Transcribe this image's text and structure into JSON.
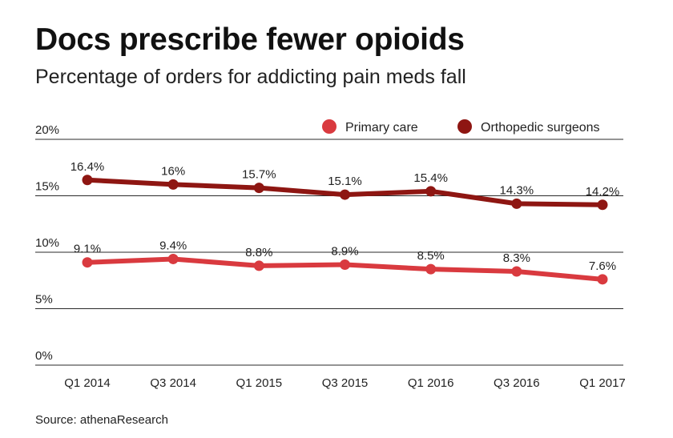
{
  "chart_data": {
    "type": "line",
    "title": "Docs prescribe fewer opioids",
    "subtitle": "Percentage of orders for addicting pain meds fall",
    "xlabel": "",
    "ylabel": "",
    "categories": [
      "Q1 2014",
      "Q3 2014",
      "Q1 2015",
      "Q3 2015",
      "Q1 2016",
      "Q3 2016",
      "Q1 2017"
    ],
    "ylim": [
      0,
      20
    ],
    "yticks": [
      0,
      5,
      10,
      15,
      20
    ],
    "ytick_labels": [
      "0%",
      "5%",
      "10%",
      "15%",
      "20%"
    ],
    "grid": true,
    "legend_position": "top-right",
    "series": [
      {
        "name": "Primary care",
        "color": "#d93a3f",
        "values": [
          9.1,
          9.4,
          8.8,
          8.9,
          8.5,
          8.3,
          7.6
        ],
        "labels": [
          "9.1%",
          "9.4%",
          "8.8%",
          "8.9%",
          "8.5%",
          "8.3%",
          "7.6%"
        ]
      },
      {
        "name": "Orthopedic surgeons",
        "color": "#8e1612",
        "values": [
          16.4,
          16.0,
          15.7,
          15.1,
          15.4,
          14.3,
          14.2
        ],
        "labels": [
          "16.4%",
          "16%",
          "15.7%",
          "15.1%",
          "15.4%",
          "14.3%",
          "14.2%"
        ]
      }
    ]
  },
  "source": "Source: athenaResearch"
}
